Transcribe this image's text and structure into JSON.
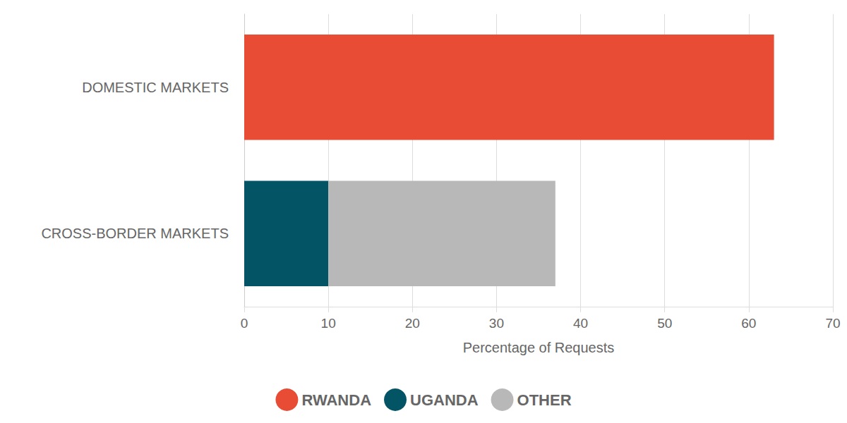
{
  "chart_data": {
    "type": "bar",
    "orientation": "horizontal",
    "stacked": true,
    "categories": [
      "DOMESTIC MARKETS",
      "CROSS-BORDER MARKETS"
    ],
    "series": [
      {
        "name": "RWANDA",
        "color": "#e84c35",
        "values": [
          63,
          null
        ]
      },
      {
        "name": "UGANDA",
        "color": "#035566",
        "values": [
          null,
          10
        ]
      },
      {
        "name": "OTHER",
        "color": "#b8b8b8",
        "values": [
          null,
          27
        ]
      }
    ],
    "xlabel": "Percentage of Requests",
    "xlim": [
      0,
      70
    ],
    "xticks": [
      0,
      10,
      20,
      30,
      40,
      50,
      60,
      70
    ],
    "grid": true,
    "legend": "bottom"
  }
}
